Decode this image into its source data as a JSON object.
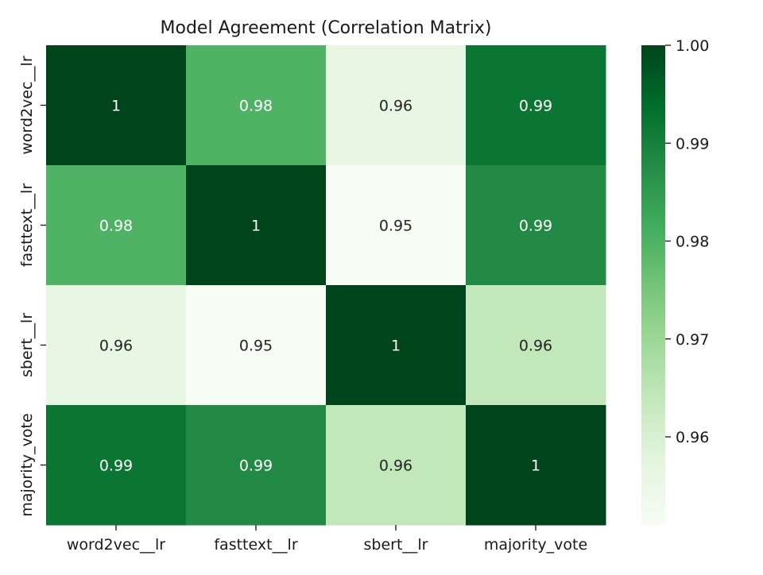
{
  "chart_data": {
    "type": "heatmap",
    "title": "Model Agreement (Correlation Matrix)",
    "x_categories": [
      "word2vec__lr",
      "fasttext__lr",
      "sbert__lr",
      "majority_vote"
    ],
    "y_categories": [
      "word2vec__lr",
      "fasttext__lr",
      "sbert__lr",
      "majority_vote"
    ],
    "values": [
      [
        1.0,
        0.98,
        0.956,
        0.992
      ],
      [
        0.98,
        1.0,
        0.951,
        0.988
      ],
      [
        0.956,
        0.951,
        1.0,
        0.964
      ],
      [
        0.992,
        0.988,
        0.964,
        1.0
      ]
    ],
    "cell_labels": [
      [
        "1",
        "0.98",
        "0.96",
        "0.99"
      ],
      [
        "0.98",
        "1",
        "0.95",
        "0.99"
      ],
      [
        "0.96",
        "0.95",
        "1",
        "0.96"
      ],
      [
        "0.99",
        "0.99",
        "0.96",
        "1"
      ]
    ],
    "colormap": "Greens",
    "colorbar": {
      "min": 0.951,
      "max": 1.0,
      "ticks": [
        0.96,
        0.97,
        0.98,
        0.99,
        1.0
      ],
      "tick_labels": [
        "0.96",
        "0.97",
        "0.98",
        "0.99",
        "1.00"
      ]
    }
  }
}
